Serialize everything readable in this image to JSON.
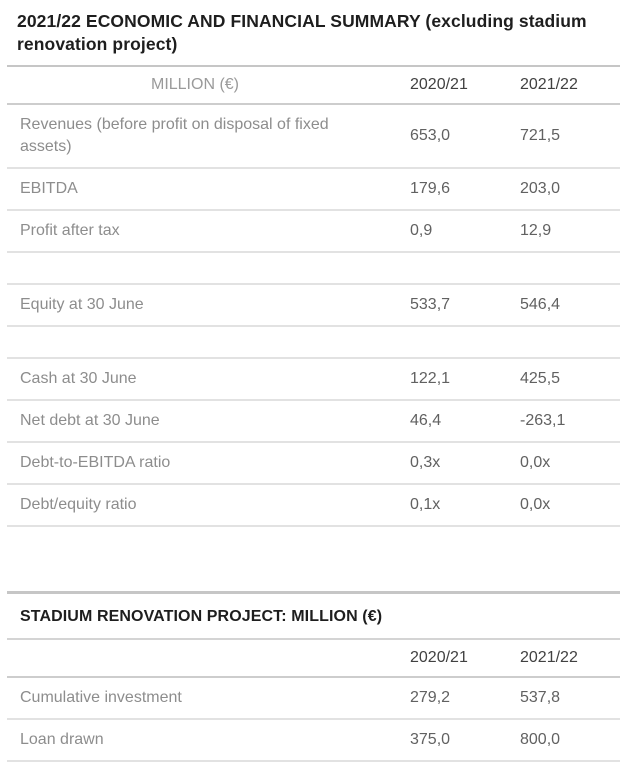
{
  "page": {
    "title": "2021/22 ECONOMIC AND FINANCIAL SUMMARY (excluding stadium renovation project)"
  },
  "colors": {
    "title_text": "#1e1e1e",
    "label_text": "#8d8d8d",
    "value_text": "#616161",
    "year_header_text": "#414141",
    "million_header_text": "#9a9a9a",
    "rule_strong": "#c6c6c6",
    "rule_light": "#e2e2e2"
  },
  "summary_table": {
    "col_header": "MILLION (€)",
    "year_headers": [
      "2020/21",
      "2021/22"
    ],
    "rows": [
      {
        "label": "Revenues (before profit on disposal of fixed assets)",
        "y2020_21": "653,0",
        "y2021_22": "721,5"
      },
      {
        "label": "EBITDA",
        "y2020_21": "179,6",
        "y2021_22": "203,0"
      },
      {
        "label": "Profit after tax",
        "y2020_21": "0,9",
        "y2021_22": "12,9"
      },
      {
        "label": "",
        "y2020_21": "",
        "y2021_22": "",
        "spacer": true
      },
      {
        "label": "Equity at 30 June",
        "y2020_21": "533,7",
        "y2021_22": "546,4"
      },
      {
        "label": "",
        "y2020_21": "",
        "y2021_22": "",
        "spacer": true
      },
      {
        "label": "Cash at 30 June",
        "y2020_21": "122,1",
        "y2021_22": "425,5"
      },
      {
        "label": "Net debt at 30 June",
        "y2020_21": "46,4",
        "y2021_22": "-263,1"
      },
      {
        "label": "Debt-to-EBITDA ratio",
        "y2020_21": "0,3x",
        "y2021_22": "0,0x"
      },
      {
        "label": "Debt/equity ratio",
        "y2020_21": "0,1x",
        "y2021_22": "0,0x"
      }
    ]
  },
  "stadium_table": {
    "title": "STADIUM RENOVATION PROJECT: MILLION (€)",
    "col_header": "",
    "year_headers": [
      "2020/21",
      "2021/22"
    ],
    "rows": [
      {
        "label": "Cumulative investment",
        "y2020_21": "279,2",
        "y2021_22": "537,8"
      },
      {
        "label": "Loan drawn",
        "y2020_21": "375,0",
        "y2021_22": "800,0"
      }
    ]
  }
}
